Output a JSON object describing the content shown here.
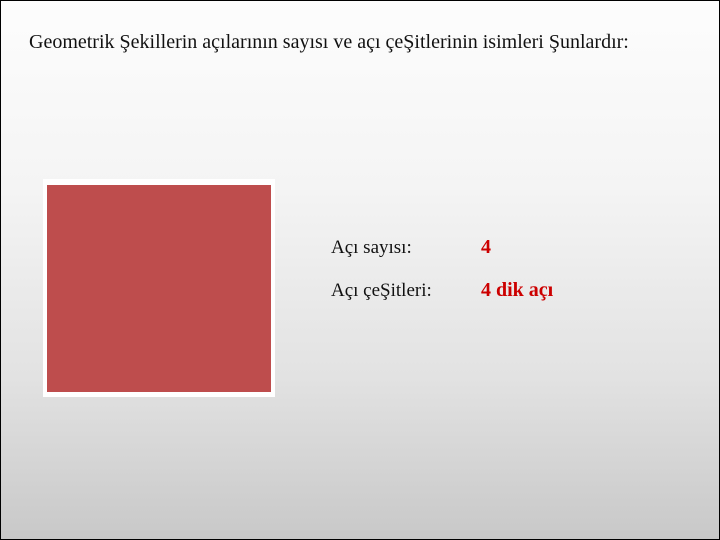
{
  "heading": "Geometrik Şekillerin açılarının sayısı ve açı çeŞitlerinin isimleri Şunlardır:",
  "shape": {
    "fill_color": "#be4d4d",
    "background_color": "#ffffff"
  },
  "rows": [
    {
      "label": "Açı sayısı:",
      "value": "4",
      "value_color": "#cc0000"
    },
    {
      "label": "Açı çeŞitleri:",
      "value": "4 dik açı",
      "value_color": "#cc0000"
    }
  ]
}
